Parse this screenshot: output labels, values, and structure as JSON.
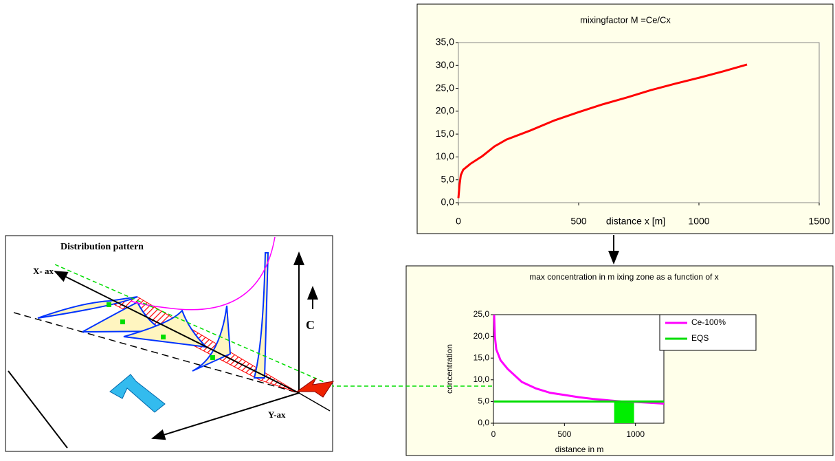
{
  "chart_data": [
    {
      "type": "line",
      "title": "mixingfactor M =Ce/Cx",
      "x_label": "distance x [m]",
      "x": [
        0,
        5,
        10,
        20,
        50,
        100,
        150,
        200,
        300,
        400,
        500,
        600,
        700,
        800,
        900,
        1000,
        1100,
        1200
      ],
      "series": [
        {
          "color": "#ff0000",
          "values": [
            1.0,
            4.0,
            6.0,
            7.2,
            8.5,
            10.2,
            12.3,
            13.8,
            15.8,
            18.0,
            19.8,
            21.5,
            23.0,
            24.6,
            26.0,
            27.3,
            28.7,
            30.2
          ]
        }
      ],
      "xlim": [
        0,
        1500
      ],
      "xticks": [
        0,
        500,
        1000,
        1500
      ],
      "ylim": [
        0,
        35
      ],
      "yticks": [
        {
          "value": 0,
          "label": "0,0"
        },
        {
          "value": 5,
          "label": "5,0"
        },
        {
          "value": 10,
          "label": "10,0"
        },
        {
          "value": 15,
          "label": "15,0"
        },
        {
          "value": 20,
          "label": "20,0"
        },
        {
          "value": 25,
          "label": "25,0"
        },
        {
          "value": 30,
          "label": "30,0"
        },
        {
          "value": 35,
          "label": "35,0"
        }
      ]
    },
    {
      "type": "line",
      "title": "max concentration in m ixing zone as a function of x",
      "x_label": "distance in m",
      "y_label": "concentration",
      "x": [
        5,
        10,
        20,
        50,
        100,
        200,
        300,
        400,
        500,
        600,
        700,
        800,
        900,
        1000,
        1100,
        1200
      ],
      "series": [
        {
          "name": "Ce-100%",
          "color": "#ff00ff",
          "values": [
            25,
            20,
            17,
            14.5,
            12.5,
            9.5,
            8.0,
            7.0,
            6.5,
            6.0,
            5.6,
            5.3,
            5.0,
            4.9,
            4.7,
            4.5
          ]
        },
        {
          "name": "EQS",
          "color": "#00dd00",
          "values": [
            5,
            5,
            5,
            5,
            5,
            5,
            5,
            5,
            5,
            5,
            5,
            5,
            5,
            5,
            5,
            5
          ]
        }
      ],
      "highlight_x": [
        850,
        990
      ],
      "highlight_color": "#00ee00",
      "xlim": [
        0,
        1200
      ],
      "xticks": [
        0,
        500,
        1000
      ],
      "ylim": [
        0,
        25
      ],
      "yticks": [
        {
          "value": 0,
          "label": "0,0"
        },
        {
          "value": 5,
          "label": "5,0"
        },
        {
          "value": 10,
          "label": "10,0"
        },
        {
          "value": 15,
          "label": "15,0"
        },
        {
          "value": 20,
          "label": "20,0"
        },
        {
          "value": 25,
          "label": "25,0"
        }
      ]
    }
  ],
  "diagram": {
    "title": "Distribution pattern",
    "x_axis": "X- ax",
    "y_axis": "Y-ax",
    "c_label": "C"
  }
}
